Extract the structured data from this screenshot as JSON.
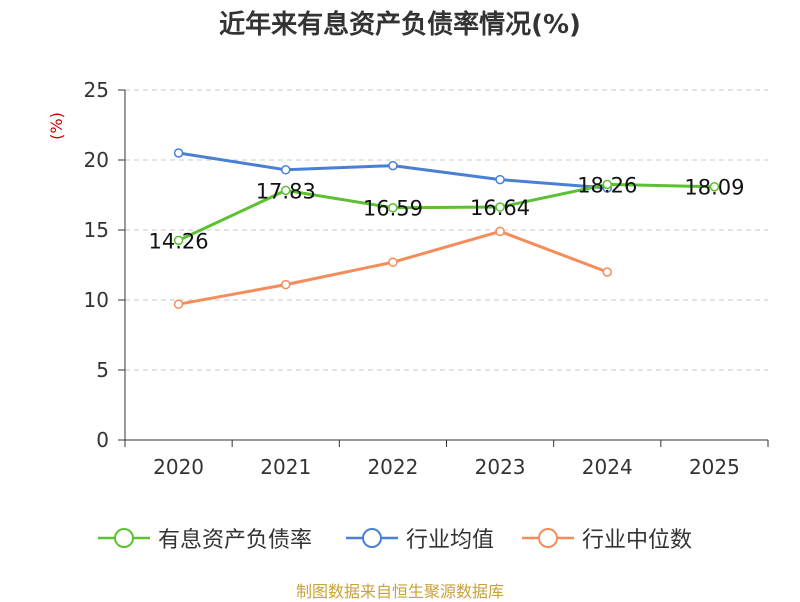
{
  "chart_data": {
    "type": "line",
    "title": "近年来有息资产负债率情况(%)",
    "ylabel": "(%)",
    "xlabel": "",
    "categories": [
      "2020",
      "2021",
      "2022",
      "2023",
      "2024",
      "2025"
    ],
    "ylim": [
      0,
      25
    ],
    "yticks": [
      0,
      5,
      10,
      15,
      20,
      25
    ],
    "grid": true,
    "legend_position": "bottom",
    "series": [
      {
        "name": "有息资产负债率",
        "color": "#5bc132",
        "values": [
          14.26,
          17.83,
          16.59,
          16.64,
          18.26,
          18.09
        ],
        "labels": [
          "14.26",
          "17.83",
          "16.59",
          "16.64",
          "18.26",
          "18.09"
        ]
      },
      {
        "name": "行业均值",
        "color": "#4a7fd6",
        "values": [
          20.5,
          19.3,
          19.6,
          18.6,
          18.0,
          null
        ]
      },
      {
        "name": "行业中位数",
        "color": "#f58c5a",
        "values": [
          9.7,
          11.1,
          12.7,
          14.9,
          12.0,
          null
        ]
      }
    ]
  },
  "source_note": "制图数据来自恒生聚源数据库"
}
